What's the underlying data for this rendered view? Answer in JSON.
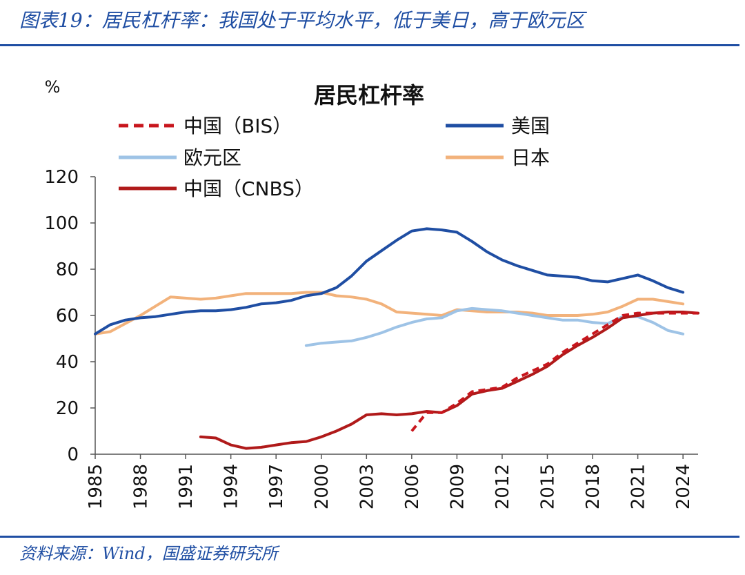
{
  "figure": {
    "header": "图表19：居民杠杆率：我国处于平均水平，低于美日，高于欧元区",
    "source": "资料来源：Wind，国盛证券研究所"
  },
  "chart_data": {
    "type": "line",
    "title": "居民杠杆率",
    "ylabel": "%",
    "xlabel": "",
    "xlim": [
      1985,
      2025
    ],
    "ylim": [
      0,
      120
    ],
    "x_ticks": [
      1985,
      1988,
      1991,
      1994,
      1997,
      2000,
      2003,
      2006,
      2009,
      2012,
      2015,
      2018,
      2021,
      2024
    ],
    "y_ticks": [
      0,
      20,
      40,
      60,
      80,
      100,
      120
    ],
    "grid": false,
    "legend": "top",
    "series": [
      {
        "name": "中国（BIS）",
        "color": "#c8161d",
        "style": "dashed",
        "points": [
          [
            2006.0,
            10
          ],
          [
            2006.5,
            14
          ],
          [
            2007,
            18
          ],
          [
            2008,
            18
          ],
          [
            2009,
            22
          ],
          [
            2010,
            27
          ],
          [
            2011,
            28
          ],
          [
            2012,
            29
          ],
          [
            2013,
            33
          ],
          [
            2014,
            36
          ],
          [
            2015,
            39
          ],
          [
            2016,
            44
          ],
          [
            2017,
            48
          ],
          [
            2018,
            52
          ],
          [
            2019,
            56
          ],
          [
            2020,
            60
          ],
          [
            2021,
            61
          ],
          [
            2022,
            61
          ],
          [
            2023,
            61
          ],
          [
            2024,
            61
          ],
          [
            2025,
            61
          ]
        ]
      },
      {
        "name": "美国",
        "color": "#1f4ea3",
        "style": "solid",
        "points": [
          [
            1985,
            52
          ],
          [
            1986,
            56
          ],
          [
            1987,
            58
          ],
          [
            1988,
            59
          ],
          [
            1989,
            59.5
          ],
          [
            1990,
            60.5
          ],
          [
            1991,
            61.5
          ],
          [
            1992,
            62
          ],
          [
            1993,
            62
          ],
          [
            1994,
            62.5
          ],
          [
            1995,
            63.5
          ],
          [
            1996,
            65
          ],
          [
            1997,
            65.5
          ],
          [
            1998,
            66.5
          ],
          [
            1999,
            68.5
          ],
          [
            2000,
            69.5
          ],
          [
            2001,
            72
          ],
          [
            2002,
            77
          ],
          [
            2003,
            83.5
          ],
          [
            2004,
            88
          ],
          [
            2005,
            92.5
          ],
          [
            2006,
            96.5
          ],
          [
            2007,
            97.5
          ],
          [
            2008,
            97
          ],
          [
            2009,
            96
          ],
          [
            2010,
            92
          ],
          [
            2011,
            87.5
          ],
          [
            2012,
            84
          ],
          [
            2013,
            81.5
          ],
          [
            2014,
            79.5
          ],
          [
            2015,
            77.5
          ],
          [
            2016,
            77
          ],
          [
            2017,
            76.5
          ],
          [
            2018,
            75
          ],
          [
            2019,
            74.5
          ],
          [
            2020,
            76
          ],
          [
            2021,
            77.5
          ],
          [
            2022,
            75
          ],
          [
            2023,
            72
          ],
          [
            2024,
            70
          ]
        ]
      },
      {
        "name": "欧元区",
        "color": "#9ec3e6",
        "style": "solid",
        "points": [
          [
            1999,
            47
          ],
          [
            2000,
            48
          ],
          [
            2001,
            48.5
          ],
          [
            2002,
            49
          ],
          [
            2003,
            50.5
          ],
          [
            2004,
            52.5
          ],
          [
            2005,
            55
          ],
          [
            2006,
            57
          ],
          [
            2007,
            58.5
          ],
          [
            2008,
            59
          ],
          [
            2009,
            62
          ],
          [
            2010,
            63
          ],
          [
            2011,
            62.5
          ],
          [
            2012,
            62
          ],
          [
            2013,
            61
          ],
          [
            2014,
            60
          ],
          [
            2015,
            59
          ],
          [
            2016,
            58
          ],
          [
            2017,
            58
          ],
          [
            2018,
            57
          ],
          [
            2019,
            56.5
          ],
          [
            2020,
            59.5
          ],
          [
            2021,
            59.5
          ],
          [
            2022,
            57
          ],
          [
            2023,
            53.5
          ],
          [
            2024,
            52
          ]
        ]
      },
      {
        "name": "日本",
        "color": "#f2b27b",
        "style": "solid",
        "points": [
          [
            1985,
            52
          ],
          [
            1986,
            53
          ],
          [
            1987,
            56.5
          ],
          [
            1988,
            60
          ],
          [
            1989,
            64
          ],
          [
            1990,
            68
          ],
          [
            1991,
            67.5
          ],
          [
            1992,
            67
          ],
          [
            1993,
            67.5
          ],
          [
            1994,
            68.5
          ],
          [
            1995,
            69.5
          ],
          [
            1996,
            69.5
          ],
          [
            1997,
            69.5
          ],
          [
            1998,
            69.5
          ],
          [
            1999,
            70
          ],
          [
            2000,
            70
          ],
          [
            2001,
            68.5
          ],
          [
            2002,
            68
          ],
          [
            2003,
            67
          ],
          [
            2004,
            65
          ],
          [
            2005,
            61.5
          ],
          [
            2006,
            61
          ],
          [
            2007,
            60.5
          ],
          [
            2008,
            60
          ],
          [
            2009,
            62.5
          ],
          [
            2010,
            62
          ],
          [
            2011,
            61.5
          ],
          [
            2012,
            61.5
          ],
          [
            2013,
            61.5
          ],
          [
            2014,
            61
          ],
          [
            2015,
            60
          ],
          [
            2016,
            60
          ],
          [
            2017,
            60
          ],
          [
            2018,
            60.5
          ],
          [
            2019,
            61.5
          ],
          [
            2020,
            64
          ],
          [
            2021,
            67
          ],
          [
            2022,
            67
          ],
          [
            2023,
            66
          ],
          [
            2024,
            65
          ]
        ]
      },
      {
        "name": "中国（CNBS）",
        "color": "#b01a1a",
        "style": "solid",
        "points": [
          [
            1992,
            7.5
          ],
          [
            1993,
            7
          ],
          [
            1994,
            4
          ],
          [
            1995,
            2.5
          ],
          [
            1996,
            3
          ],
          [
            1997,
            4
          ],
          [
            1998,
            5
          ],
          [
            1999,
            5.5
          ],
          [
            2000,
            7.5
          ],
          [
            2001,
            10
          ],
          [
            2002,
            13
          ],
          [
            2003,
            17
          ],
          [
            2004,
            17.5
          ],
          [
            2005,
            17
          ],
          [
            2006,
            17.5
          ],
          [
            2007,
            18.5
          ],
          [
            2008,
            18
          ],
          [
            2009,
            21
          ],
          [
            2010,
            26
          ],
          [
            2011,
            27.5
          ],
          [
            2012,
            28.5
          ],
          [
            2013,
            31.5
          ],
          [
            2014,
            34.5
          ],
          [
            2015,
            38
          ],
          [
            2016,
            43
          ],
          [
            2017,
            47
          ],
          [
            2018,
            50.5
          ],
          [
            2019,
            54.5
          ],
          [
            2020,
            59
          ],
          [
            2021,
            60
          ],
          [
            2022,
            61
          ],
          [
            2023,
            61.5
          ],
          [
            2024,
            61.5
          ],
          [
            2025,
            61
          ]
        ]
      }
    ]
  }
}
